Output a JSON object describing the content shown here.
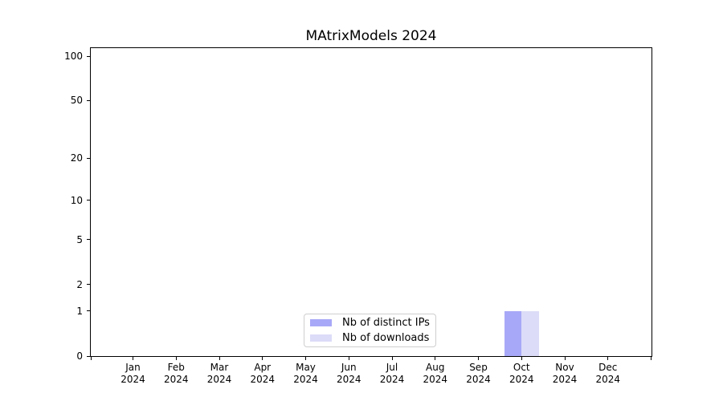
{
  "chart_data": {
    "type": "bar",
    "title": "MAtrixModels 2024",
    "categories": [
      "Jan 2024",
      "Feb 2024",
      "Mar 2024",
      "Apr 2024",
      "May 2024",
      "Jun 2024",
      "Jul 2024",
      "Aug 2024",
      "Sep 2024",
      "Oct 2024",
      "Nov 2024",
      "Dec 2024"
    ],
    "series": [
      {
        "name": "Nb of distinct IPs",
        "color": "#a8a8f8",
        "values": [
          0,
          0,
          0,
          0,
          0,
          0,
          0,
          0,
          0,
          1,
          0,
          0
        ]
      },
      {
        "name": "Nb of downloads",
        "color": "#dcdcf8",
        "values": [
          0,
          0,
          0,
          0,
          0,
          0,
          0,
          0,
          0,
          1,
          0,
          0
        ]
      }
    ],
    "y_axis": {
      "scale": "log1p",
      "tick_labels": [
        0,
        1,
        2,
        5,
        10,
        20,
        50,
        100
      ],
      "range_top_value": 113,
      "major_gridlines": [
        1,
        10,
        100
      ],
      "minor_gridlines": [
        2,
        3,
        4,
        5,
        6,
        7,
        8,
        9,
        20,
        30,
        40,
        50,
        60,
        70,
        80,
        90
      ]
    },
    "x_axis": {
      "year_line": "2024"
    },
    "legend": {
      "items": [
        "Nb of distinct IPs",
        "Nb of downloads"
      ],
      "position": "lower-center-inside"
    },
    "grid": true,
    "colors": {
      "bar_distinct_ips": "#a8a8f8",
      "bar_downloads": "#dcdcf8",
      "major_grid": "#d4d4d4",
      "minor_grid": "#efefef",
      "spine": "#000000",
      "legend_border": "#cfcfcf",
      "background": "#ffffff"
    }
  }
}
